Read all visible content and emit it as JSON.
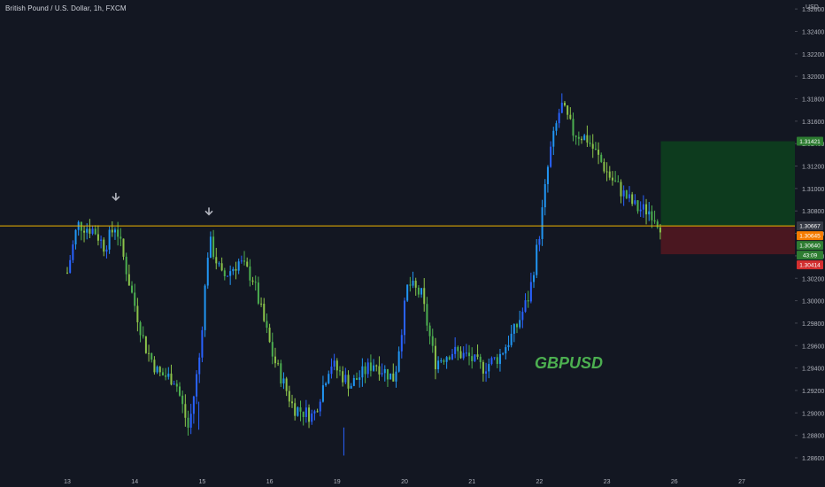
{
  "header": {
    "title": "British Pound / U.S. Dollar, 1h, FXCM"
  },
  "watermark": "GBPUSD",
  "colors": {
    "background": "#131722",
    "candle_up": "#26a69a",
    "candle_blue": "#2962ff",
    "candle_green": "#4caf50",
    "horizontal_line": "#f0b400",
    "profit_zone": "#0d3b1e",
    "loss_zone": "#4a1720",
    "price_axis_text": "#b2b5be",
    "arrow": "#b2b5be"
  },
  "chart_data": {
    "type": "candlestick",
    "title": "British Pound / U.S. Dollar, 1h, FXCM",
    "symbol_watermark": "GBPUSD",
    "currency": "USD",
    "y_ticks": [
      "1.32600",
      "1.32400",
      "1.32200",
      "1.32000",
      "1.31800",
      "1.31600",
      "1.31400",
      "1.31200",
      "1.31000",
      "1.30800",
      "1.30600",
      "1.30400",
      "1.30200",
      "1.30000",
      "1.29800",
      "1.29600",
      "1.29400",
      "1.29200",
      "1.29000",
      "1.28800",
      "1.28600"
    ],
    "ylim": [
      1.2845,
      1.3268
    ],
    "x_ticks": [
      "13",
      "14",
      "15",
      "16",
      "19",
      "20",
      "21",
      "22",
      "23",
      "26",
      "27"
    ],
    "x_tick_positions_index": [
      0,
      1,
      2,
      3,
      4,
      5,
      6,
      7,
      8,
      9,
      10
    ],
    "price_path": [
      {
        "t": 0.0,
        "p": 1.3025
      },
      {
        "t": 0.15,
        "p": 1.3068
      },
      {
        "t": 0.4,
        "p": 1.3063
      },
      {
        "t": 0.55,
        "p": 1.3048
      },
      {
        "t": 0.72,
        "p": 1.3068
      },
      {
        "t": 0.95,
        "p": 1.3008
      },
      {
        "t": 1.15,
        "p": 1.296
      },
      {
        "t": 1.35,
        "p": 1.2935
      },
      {
        "t": 1.6,
        "p": 1.293
      },
      {
        "t": 1.8,
        "p": 1.2885
      },
      {
        "t": 1.96,
        "p": 1.295
      },
      {
        "t": 2.1,
        "p": 1.3055
      },
      {
        "t": 2.3,
        "p": 1.302
      },
      {
        "t": 2.55,
        "p": 1.3035
      },
      {
        "t": 2.75,
        "p": 1.302
      },
      {
        "t": 3.05,
        "p": 1.295
      },
      {
        "t": 3.35,
        "p": 1.2905
      },
      {
        "t": 3.65,
        "p": 1.2897
      },
      {
        "t": 3.9,
        "p": 1.2945
      },
      {
        "t": 4.2,
        "p": 1.2925
      },
      {
        "t": 4.55,
        "p": 1.2945
      },
      {
        "t": 4.85,
        "p": 1.293
      },
      {
        "t": 5.05,
        "p": 1.3015
      },
      {
        "t": 5.25,
        "p": 1.3005
      },
      {
        "t": 5.45,
        "p": 1.2945
      },
      {
        "t": 5.7,
        "p": 1.2955
      },
      {
        "t": 5.95,
        "p": 1.295
      },
      {
        "t": 6.15,
        "p": 1.294
      },
      {
        "t": 6.4,
        "p": 1.295
      },
      {
        "t": 6.65,
        "p": 1.2975
      },
      {
        "t": 6.85,
        "p": 1.3005
      },
      {
        "t": 7.0,
        "p": 1.306
      },
      {
        "t": 7.15,
        "p": 1.313
      },
      {
        "t": 7.32,
        "p": 1.3175
      },
      {
        "t": 7.5,
        "p": 1.315
      },
      {
        "t": 7.7,
        "p": 1.3145
      },
      {
        "t": 7.85,
        "p": 1.313
      },
      {
        "t": 8.05,
        "p": 1.311
      },
      {
        "t": 8.25,
        "p": 1.3095
      },
      {
        "t": 8.45,
        "p": 1.3082
      },
      {
        "t": 8.65,
        "p": 1.308
      },
      {
        "t": 8.8,
        "p": 1.3067
      }
    ],
    "lows": [
      {
        "t": 1.95,
        "p": 1.2885
      },
      {
        "t": 4.1,
        "p": 1.2862
      }
    ],
    "horizontal_line": {
      "price": 1.30667
    },
    "arrows": [
      {
        "t": 0.72,
        "p": 1.3085
      },
      {
        "t": 2.1,
        "p": 1.3072
      }
    ],
    "position": {
      "start_t": 8.8,
      "end_t": 11.0,
      "entry": 1.30667,
      "take_profit": 1.31421,
      "stop_loss": 1.30414
    },
    "price_labels": [
      {
        "text": "1.31421",
        "price": 1.31421,
        "color": "#2e7d32"
      },
      {
        "text": "1.30667",
        "price": 1.30667,
        "color": "#363a45"
      },
      {
        "text": "1.30645",
        "price": 1.30645,
        "color": "#f57c00"
      },
      {
        "text": "1.30640",
        "price": 1.3064,
        "color": "#2e7d32"
      },
      {
        "text": "43:09",
        "price": 1.3059,
        "color": "#2e7d32"
      },
      {
        "text": "1.30414",
        "price": 1.30414,
        "color": "#d32f2f"
      }
    ]
  }
}
